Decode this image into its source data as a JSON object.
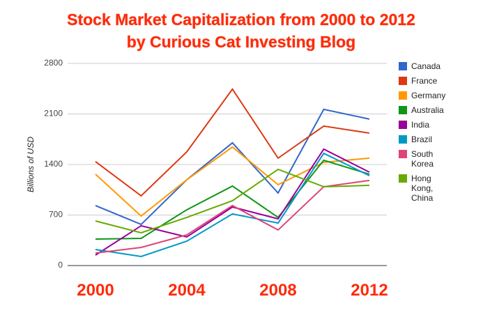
{
  "chart_data": {
    "type": "line",
    "title": "Stock Market Capitalization from 2000 to 2012",
    "subtitle": "by Curious Cat Investing Blog",
    "y_label": "Billions of USD",
    "x": [
      2000,
      2002,
      2004,
      2006,
      2008,
      2010,
      2012
    ],
    "xlim": [
      2000,
      2012
    ],
    "xticks": [
      2000,
      2004,
      2008,
      2012
    ],
    "ylim": [
      0,
      2800
    ],
    "yticks": [
      0,
      700,
      1400,
      2100,
      2800
    ],
    "grid": true,
    "legend": "right",
    "series": [
      {
        "name": "Canada",
        "color": "#3366cc",
        "values": [
          831,
          570,
          1188,
          1700,
          1005,
          2164,
          2029
        ]
      },
      {
        "name": "France",
        "color": "#dc3912",
        "values": [
          1440,
          966,
          1575,
          2444,
          1488,
          1932,
          1835
        ]
      },
      {
        "name": "Germany",
        "color": "#ff9900",
        "values": [
          1265,
          686,
          1188,
          1642,
          1120,
          1430,
          1488
        ]
      },
      {
        "name": "Australia",
        "color": "#109618",
        "values": [
          367,
          377,
          773,
          1101,
          667,
          1459,
          1265
        ]
      },
      {
        "name": "India",
        "color": "#990099",
        "values": [
          145,
          551,
          396,
          811,
          647,
          1613,
          1294
        ]
      },
      {
        "name": "Brazil",
        "color": "#0099c6",
        "values": [
          222,
          126,
          338,
          715,
          589,
          1555,
          1246
        ]
      },
      {
        "name": "South Korea",
        "color": "#dd4477",
        "values": [
          174,
          251,
          425,
          831,
          493,
          1092,
          1179
        ]
      },
      {
        "name": "Hong Kong, China",
        "color": "#66aa00",
        "values": [
          618,
          454,
          667,
          898,
          1333,
          1092,
          1111
        ]
      }
    ]
  }
}
